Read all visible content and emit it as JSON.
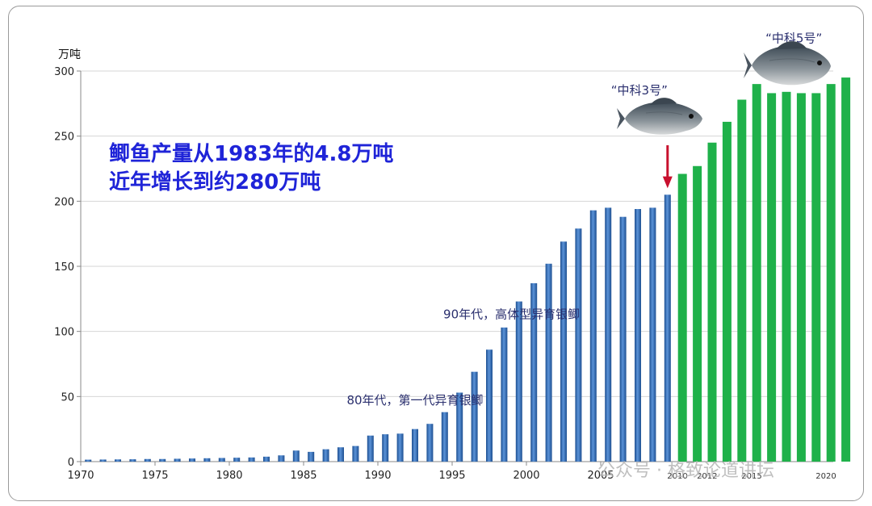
{
  "chart_data": {
    "type": "bar",
    "unit_label": "万吨",
    "ylim": [
      0,
      300
    ],
    "yticks": [
      0,
      50,
      100,
      150,
      200,
      250,
      300
    ],
    "xlim": [
      1970,
      2022
    ],
    "xticks_major": [
      1970,
      1975,
      1980,
      1985,
      1990,
      1995,
      2000,
      2005
    ],
    "xticks_minor": [
      2010,
      2012,
      2015,
      2020
    ],
    "series": [
      {
        "color": "#2e6db4",
        "x": [
          1970,
          1971,
          1972,
          1973,
          1974,
          1975,
          1976,
          1977,
          1978,
          1979,
          1980,
          1981,
          1982,
          1983,
          1984,
          1985,
          1986,
          1987,
          1988,
          1989,
          1990,
          1991,
          1992,
          1993,
          1994,
          1995,
          1996,
          1997,
          1998,
          1999,
          2000,
          2001,
          2002,
          2003,
          2004,
          2005,
          2006,
          2007,
          2008,
          2009
        ],
        "values": [
          1.5,
          1.6,
          1.7,
          1.8,
          2,
          2,
          2.2,
          2.4,
          2.6,
          2.8,
          3,
          3.2,
          3.8,
          4.8,
          8.5,
          7.5,
          9.5,
          11,
          12,
          20,
          21,
          21.5,
          25,
          29,
          38,
          53,
          69,
          86,
          103,
          123,
          137,
          152,
          169,
          179,
          193,
          195,
          188,
          194,
          195,
          205
        ]
      },
      {
        "color": "#1fb14a",
        "x": [
          2010,
          2011,
          2012,
          2013,
          2014,
          2015,
          2016,
          2017,
          2018,
          2019,
          2020,
          2021
        ],
        "values": [
          221,
          227,
          245,
          261,
          278,
          290,
          283,
          284,
          283,
          283,
          290,
          295
        ]
      }
    ],
    "headline": [
      "鲫鱼产量从1983年的4.8万吨",
      "近年增长到约280万吨"
    ],
    "annotations": [
      {
        "text": "80年代，第一代异育银鲫",
        "year": 1992.5,
        "y": 47
      },
      {
        "text": "90年代，高体型异育银鲫",
        "year": 1999,
        "y": 113
      },
      {
        "text": "“中科3号”",
        "year": 2007.6,
        "y": 285
      },
      {
        "text": "“中科5号”",
        "year": 2018,
        "y": 325
      }
    ],
    "marker_year": 2009
  },
  "watermark": "公众号 · 格致论道讲坛"
}
